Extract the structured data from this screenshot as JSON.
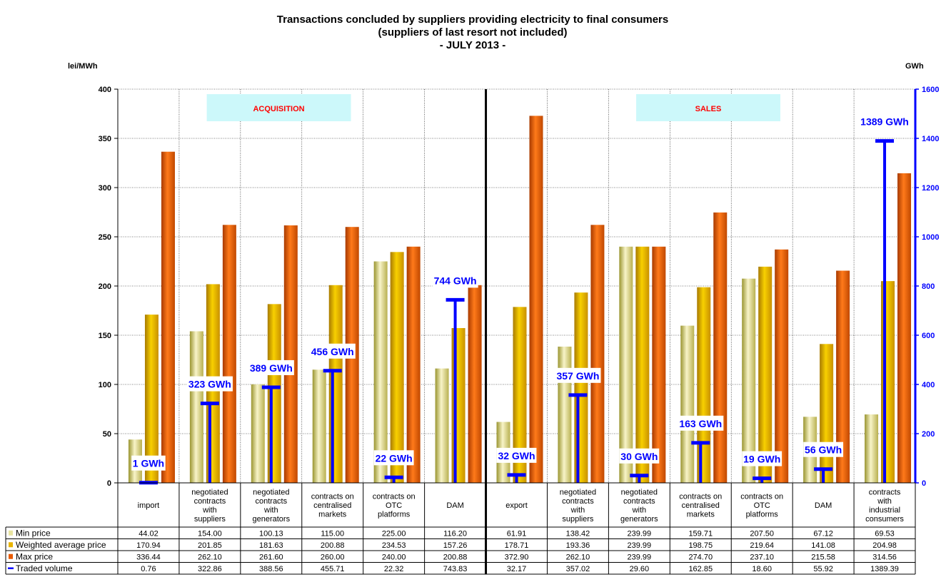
{
  "chart_data": {
    "type": "bar",
    "title_lines": [
      "Transactions concluded by suppliers providing electricity to final consumers",
      "(suppliers of last resort not included)",
      "- JULY 2013 -"
    ],
    "ylabel_left": "lei/MWh",
    "ylabel_right": "GWh",
    "ylim_left": [
      0,
      400
    ],
    "ylim_right": [
      0,
      1600
    ],
    "yticks_left": [
      "0",
      "50",
      "100",
      "150",
      "200",
      "250",
      "300",
      "350",
      "400"
    ],
    "yticks_right": [
      "0",
      "200",
      "400",
      "600",
      "800",
      "1000",
      "1200",
      "1400",
      "1600"
    ],
    "sections": [
      "ACQUISITION",
      "SALES"
    ],
    "categories": [
      [
        "import"
      ],
      [
        "negotiated",
        "contracts",
        "with",
        "suppliers"
      ],
      [
        "negotiated",
        "contracts",
        "with",
        "generators"
      ],
      [
        "contracts on",
        "centralised",
        "markets"
      ],
      [
        "contracts on",
        "OTC",
        "platforms"
      ],
      [
        "DAM"
      ],
      [
        "export"
      ],
      [
        "negotiated",
        "contracts",
        "with",
        "suppliers"
      ],
      [
        "negotiated",
        "contracts",
        "with",
        "generators"
      ],
      [
        "contracts on",
        "centralised",
        "markets"
      ],
      [
        "contracts on",
        "OTC",
        "platforms"
      ],
      [
        "DAM"
      ],
      [
        "contracts",
        "with",
        "industrial",
        "consumers"
      ]
    ],
    "series": [
      {
        "name": "Min price",
        "color": "#e8e4a0",
        "values": [
          44.02,
          154.0,
          100.13,
          115.0,
          225.0,
          116.2,
          61.91,
          138.42,
          239.99,
          159.71,
          207.5,
          67.12,
          69.53
        ],
        "display": [
          "44.02",
          "154.00",
          "100.13",
          "115.00",
          "225.00",
          "116.20",
          "61.91",
          "138.42",
          "239.99",
          "159.71",
          "207.50",
          "67.12",
          "69.53"
        ]
      },
      {
        "name": "Weighted average price",
        "color": "#e8b400",
        "values": [
          170.94,
          201.85,
          181.63,
          200.88,
          234.53,
          157.26,
          178.71,
          193.36,
          239.99,
          198.75,
          219.64,
          141.08,
          204.98
        ],
        "display": [
          "170.94",
          "201.85",
          "181.63",
          "200.88",
          "234.53",
          "157.26",
          "178.71",
          "193.36",
          "239.99",
          "198.75",
          "219.64",
          "141.08",
          "204.98"
        ]
      },
      {
        "name": "Max price",
        "color": "#e85a00",
        "values": [
          336.44,
          262.1,
          261.6,
          260.0,
          240.0,
          200.88,
          372.9,
          262.1,
          239.99,
          274.7,
          237.1,
          215.58,
          314.56
        ],
        "display": [
          "336.44",
          "262.10",
          "261.60",
          "260.00",
          "240.00",
          "200.88",
          "372.90",
          "262.10",
          "239.99",
          "274.70",
          "237.10",
          "215.58",
          "314.56"
        ]
      },
      {
        "name": "Traded volume",
        "color": "#0000ff",
        "values": [
          0.76,
          322.86,
          388.56,
          455.71,
          22.32,
          743.83,
          32.17,
          357.02,
          29.6,
          162.85,
          18.6,
          55.92,
          1389.39
        ],
        "display": [
          "0.76",
          "322.86",
          "388.56",
          "455.71",
          "22.32",
          "743.83",
          "32.17",
          "357.02",
          "29.60",
          "162.85",
          "18.60",
          "55.92",
          "1389.39"
        ]
      }
    ],
    "volume_labels": [
      "1 GWh",
      "323 GWh",
      "389 GWh",
      "456 GWh",
      "22 GWh",
      "744 GWh",
      "32 GWh",
      "357 GWh",
      "30 GWh",
      "163 GWh",
      "19 GWh",
      "56 GWh",
      "1389 GWh"
    ],
    "grid": true,
    "legend": "table-below"
  }
}
